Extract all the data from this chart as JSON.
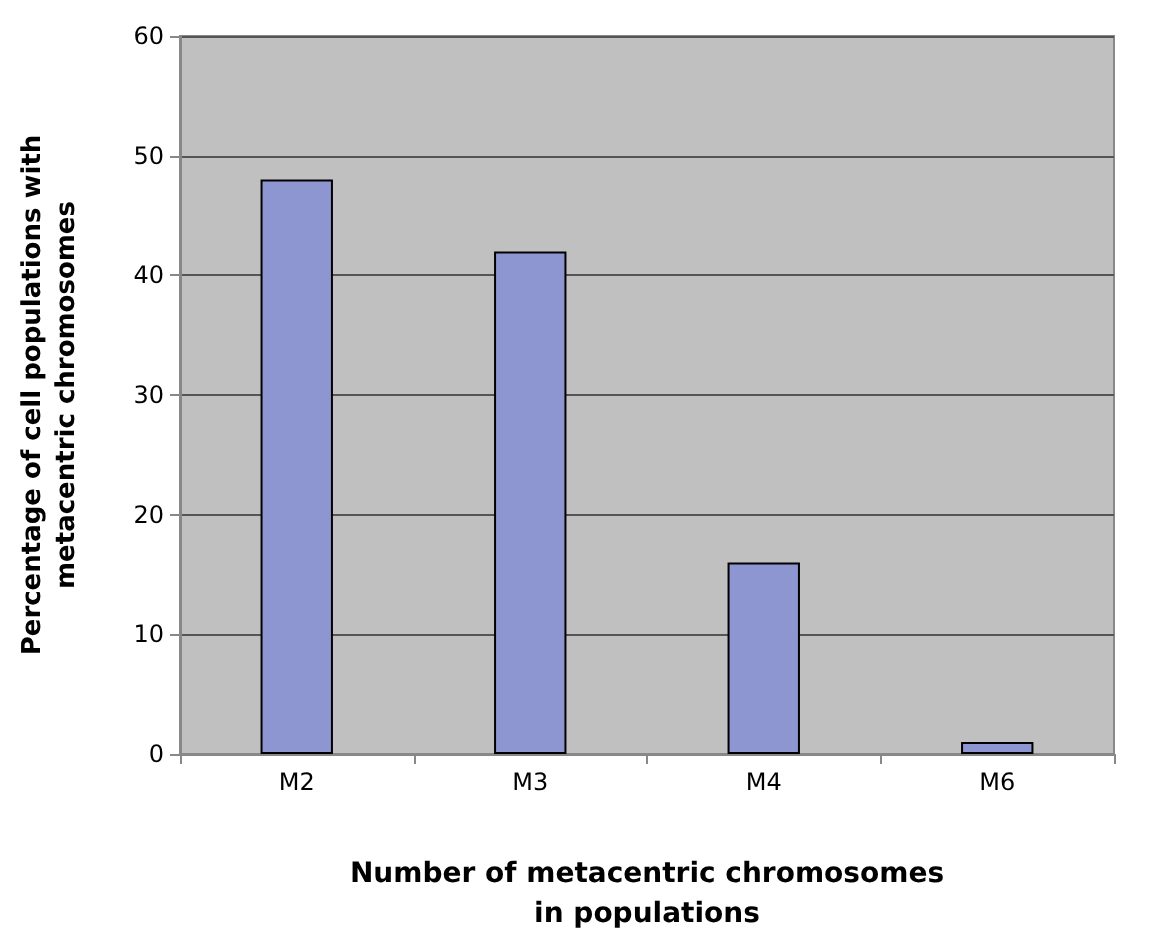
{
  "chart_data": {
    "type": "bar",
    "xlabel": "Number of metacentric chromosomes\nin populations",
    "ylabel": "Percentage of cell populations with\nmetacentric chromosomes",
    "categories": [
      "M2",
      "M3",
      "M4",
      "M6"
    ],
    "series": [
      {
        "color": "#8e96d2",
        "values": [
          48,
          42,
          16,
          1
        ]
      }
    ],
    "ylim": [
      0,
      60
    ],
    "yticks": [
      0,
      10,
      20,
      30,
      40,
      50,
      60
    ],
    "grid": "y"
  }
}
